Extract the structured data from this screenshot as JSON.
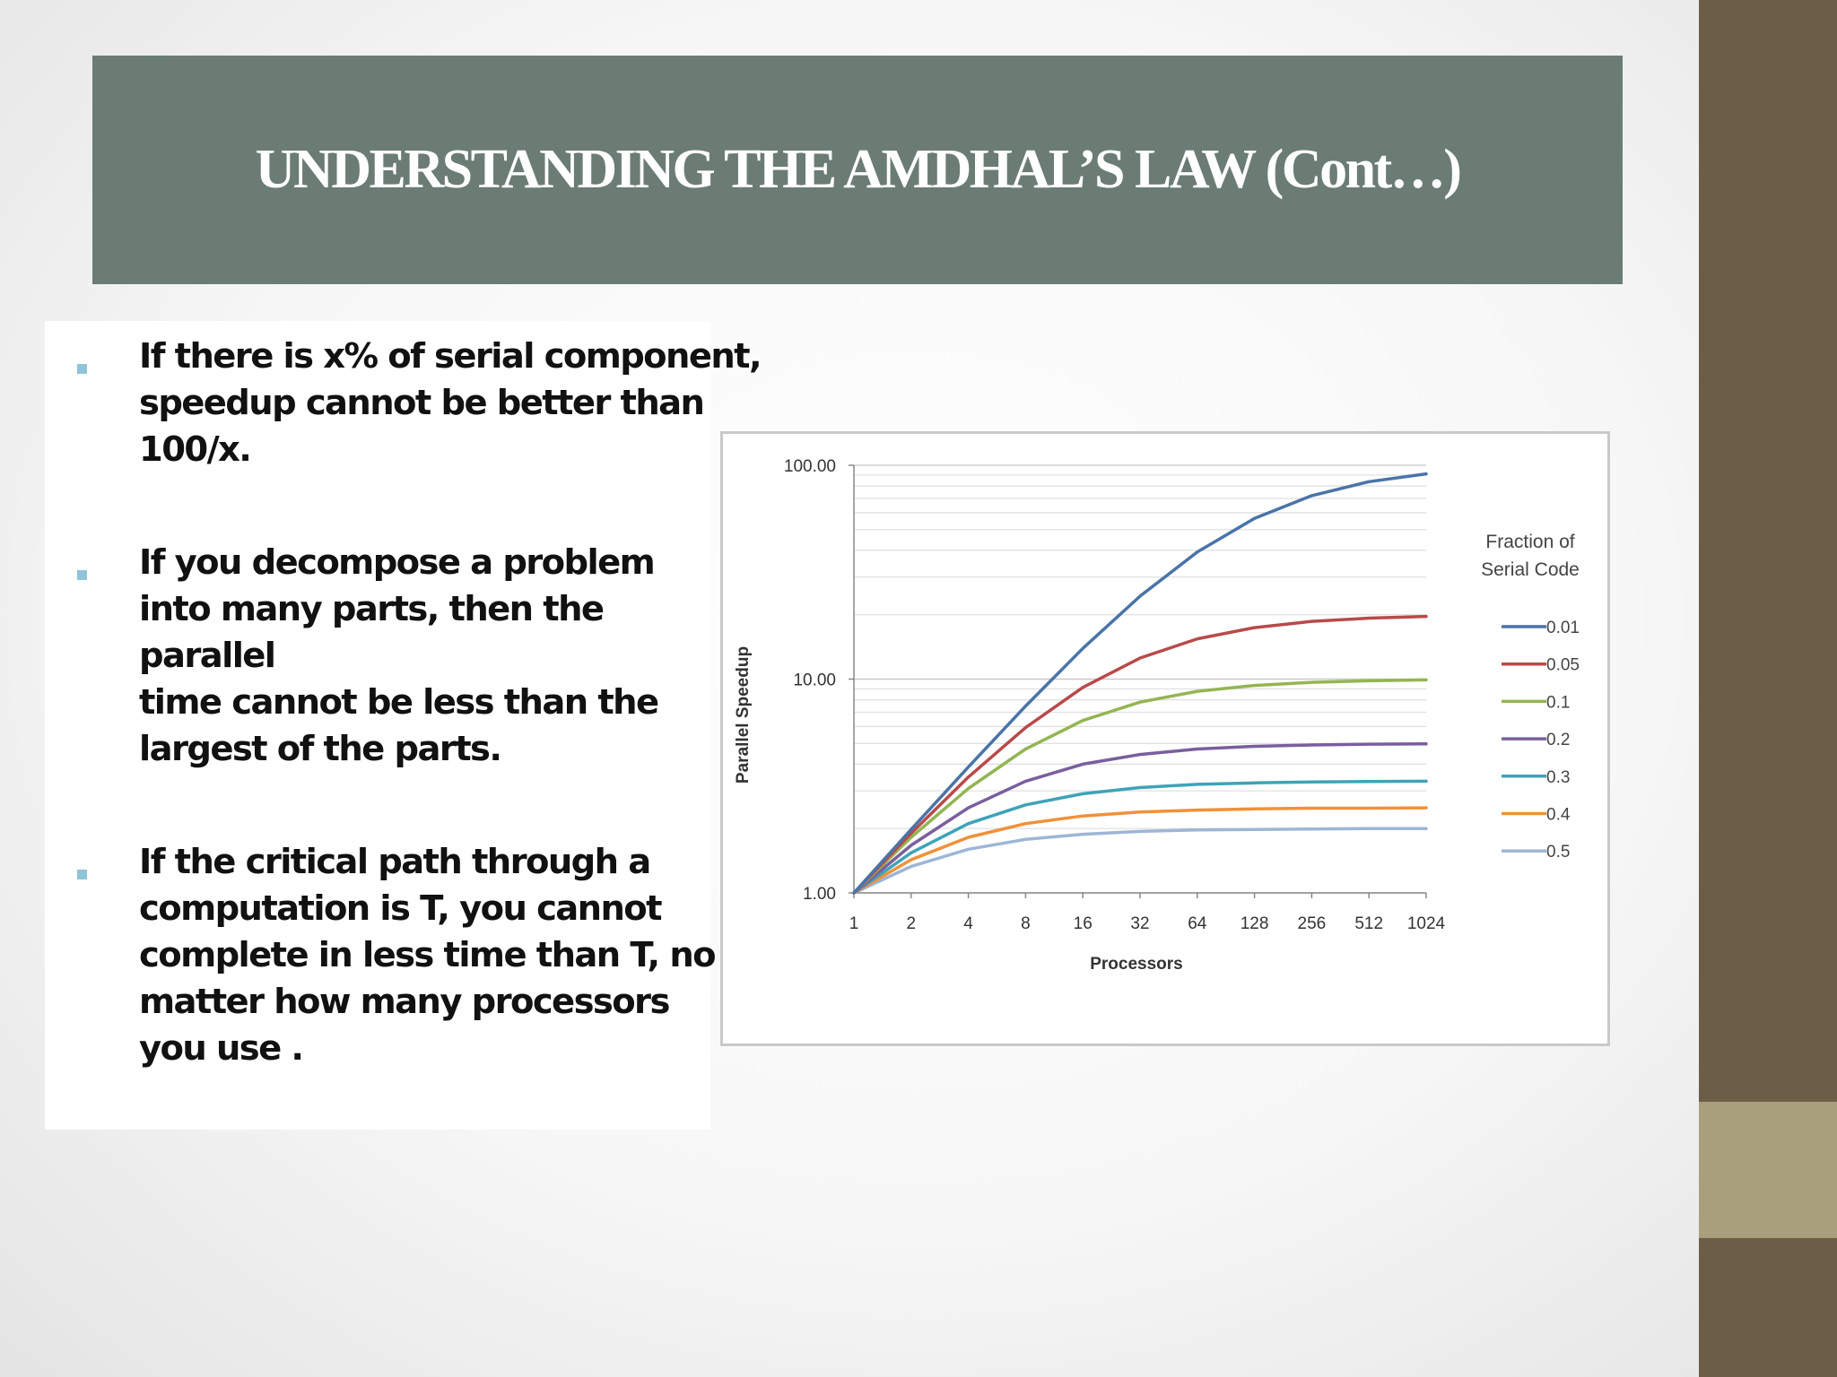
{
  "slide": {
    "title": "UNDERSTANDING THE AMDHAL’S LAW (Cont…)",
    "bullets": [
      "If there is x% of serial component, speedup cannot be better than 100/x.",
      "If you decompose a problem into many parts, then the parallel\ntime cannot be less than the largest of the parts.",
      "If the critical path through a computation is T, you cannot complete in less time than T, no matter how many processors you use ."
    ],
    "colors": {
      "banner": "#6b7c74",
      "sidebar_dark": "#6b5d47",
      "sidebar_light": "#a8a07c",
      "bullet_marker": "#8fc4d8"
    }
  },
  "chart_data": {
    "type": "line",
    "xlabel": "Processors",
    "ylabel": "Parallel Speedup",
    "x": [
      "1",
      "2",
      "4",
      "8",
      "16",
      "32",
      "64",
      "128",
      "256",
      "512",
      "1024"
    ],
    "y_scale": "log",
    "ylim": [
      1,
      100
    ],
    "y_ticks": [
      "1.00",
      "10.00",
      "100.00"
    ],
    "grid": true,
    "legend": {
      "title_line1": "Fraction of",
      "title_line2": "Serial Code",
      "position": "right"
    },
    "series": [
      {
        "name": "0.01",
        "color": "#4a74a8",
        "values": [
          1.0,
          1.98,
          3.88,
          7.48,
          13.91,
          24.43,
          39.26,
          56.39,
          72.11,
          83.8,
          91.18
        ]
      },
      {
        "name": "0.05",
        "color": "#b84a4a",
        "values": [
          1.0,
          1.9,
          3.48,
          5.93,
          9.14,
          12.55,
          15.42,
          17.41,
          18.62,
          19.28,
          19.63
        ]
      },
      {
        "name": "0.1",
        "color": "#94b553",
        "values": [
          1.0,
          1.82,
          3.08,
          4.71,
          6.4,
          7.8,
          8.77,
          9.34,
          9.66,
          9.82,
          9.91
        ]
      },
      {
        "name": "0.2",
        "color": "#7a5e9e",
        "values": [
          1.0,
          1.67,
          2.5,
          3.33,
          4.0,
          4.44,
          4.71,
          4.85,
          4.92,
          4.96,
          4.98
        ]
      },
      {
        "name": "0.3",
        "color": "#3fa3b8",
        "values": [
          1.0,
          1.54,
          2.11,
          2.58,
          2.91,
          3.11,
          3.22,
          3.27,
          3.3,
          3.32,
          3.33
        ]
      },
      {
        "name": "0.4",
        "color": "#f0913a",
        "values": [
          1.0,
          1.43,
          1.82,
          2.11,
          2.29,
          2.39,
          2.44,
          2.47,
          2.49,
          2.49,
          2.5
        ]
      },
      {
        "name": "0.5",
        "color": "#9db6d6",
        "values": [
          1.0,
          1.33,
          1.6,
          1.78,
          1.88,
          1.94,
          1.97,
          1.98,
          1.99,
          2.0,
          2.0
        ]
      }
    ]
  }
}
